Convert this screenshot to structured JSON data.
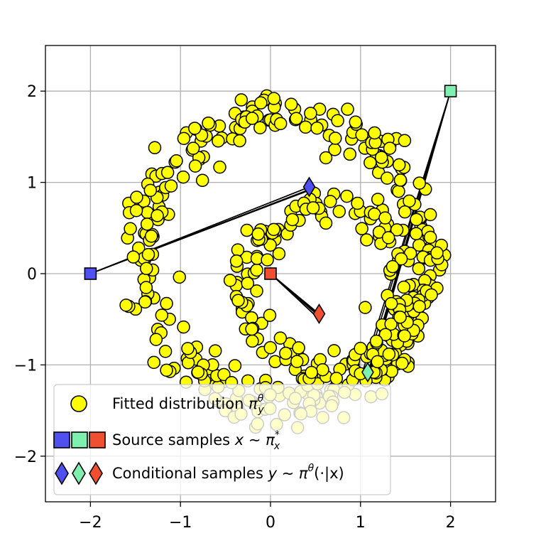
{
  "chart_data": {
    "type": "scatter",
    "xlim": [
      -2.5,
      2.5
    ],
    "ylim": [
      -2.5,
      2.5
    ],
    "xticks": [
      -2,
      -1,
      0,
      1,
      2
    ],
    "yticks": [
      -2,
      -1,
      0,
      1,
      2
    ],
    "xtick_labels": [
      "−2",
      "−1",
      "0",
      "1",
      "2"
    ],
    "ytick_labels": [
      "−2",
      "−1",
      "0",
      "1",
      "2"
    ],
    "grid": true,
    "legend_position": "lower-left",
    "legend": [
      {
        "label_main": "Fitted distribution ",
        "label_math": "π",
        "label_sup": "θ",
        "label_sub": "y",
        "label_end": ""
      },
      {
        "label_main": "Source samples ",
        "label_math": "x ∼ π",
        "label_sup": "*",
        "label_sub": "x",
        "label_end": ""
      },
      {
        "label_main": "Conditional samples ",
        "label_math": "y ∼ π",
        "label_sup": "θ",
        "label_sub": "",
        "label_end": "(·|x)"
      }
    ],
    "colors": {
      "fitted": "#ffff00",
      "source_blue": "#5050f0",
      "source_green": "#80f0b0",
      "source_red": "#f05030",
      "edge": "#000000"
    },
    "source_samples": [
      {
        "x": -2.0,
        "y": 0.0,
        "color": "#5050f0"
      },
      {
        "x": 2.0,
        "y": 2.0,
        "color": "#80f0b0"
      },
      {
        "x": 0.0,
        "y": 0.0,
        "color": "#f05030"
      }
    ],
    "conditional_samples": [
      {
        "x": 0.43,
        "y": 0.95,
        "color": "#5050f0"
      },
      {
        "x": 1.08,
        "y": -1.08,
        "color": "#80f0b0"
      },
      {
        "x": 0.54,
        "y": -0.44,
        "color": "#f05030"
      }
    ],
    "fitted_distribution": {
      "outer_ring": {
        "center": [
          0.15,
          0.15
        ],
        "radius": 1.58,
        "count": 340
      },
      "inner_ring": {
        "center": [
          0.62,
          -0.15
        ],
        "radius": 0.9,
        "count": 170
      }
    }
  }
}
